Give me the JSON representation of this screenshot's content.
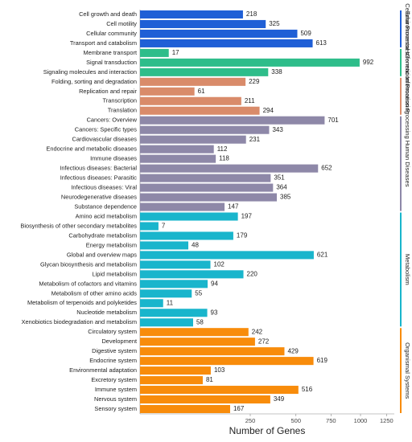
{
  "chart_data": {
    "type": "barh",
    "scale": "sqrt",
    "x_label": "Number of Genes",
    "xlim": [
      0,
      1330
    ],
    "xticks": [
      250,
      500,
      750,
      1000,
      1250
    ],
    "series": [
      {
        "name": "Cellular Processes",
        "color": "#1f5fd6",
        "categories": [
          "Cell growth and death",
          "Cell motility",
          "Cellular community",
          "Transport and catabolism"
        ],
        "values": [
          218,
          325,
          509,
          613
        ]
      },
      {
        "name": "Environmental Information Processing",
        "color": "#2ebd8a",
        "categories": [
          "Membrane transport",
          "Signal transduction",
          "Signaling molecules and interaction"
        ],
        "values": [
          17,
          992,
          338
        ]
      },
      {
        "name": "Genetic Information Processing",
        "color": "#d98b6a",
        "categories": [
          "Folding, sorting and degradation",
          "Replication and repair",
          "Transcription",
          "Translation"
        ],
        "values": [
          229,
          61,
          211,
          294
        ]
      },
      {
        "name": "Human Diseases",
        "color": "#8e88a8",
        "categories": [
          "Cancers: Overview",
          "Cancers: Specific types",
          "Cardiovascular diseases",
          "Endocrine and metabolic diseases",
          "Immune diseases",
          "Infectious diseases: Bacterial",
          "Infectious diseases: Parasitic",
          "Infectious diseases: Viral",
          "Neurodegenerative diseases",
          "Substance dependence"
        ],
        "values": [
          701,
          343,
          231,
          112,
          118,
          652,
          351,
          364,
          385,
          147
        ]
      },
      {
        "name": "Metabolism",
        "color": "#19b5cc",
        "categories": [
          "Amino acid metabolism",
          "Biosynthesis of other secondary metabolites",
          "Carbohydrate metabolism",
          "Energy metabolism",
          "Global and overview maps",
          "Glycan biosynthesis and metabolism",
          "Lipid metabolism",
          "Metabolism of cofactors and vitamins",
          "Metabolism of other amino acids",
          "Metabolism of terpenoids and polyketides",
          "Nucleotide metabolism",
          "Xenobiotics biodegradation and metabolism"
        ],
        "values": [
          197,
          7,
          179,
          48,
          621,
          102,
          220,
          94,
          55,
          11,
          93,
          58
        ]
      },
      {
        "name": "Organismal Systems",
        "color": "#f88c0b",
        "categories": [
          "Circulatory system",
          "Development",
          "Digestive system",
          "Endocrine system",
          "Environmental adaptation",
          "Excretory system",
          "Immune system",
          "Nervous system",
          "Sensory system"
        ],
        "values": [
          242,
          272,
          429,
          619,
          103,
          81,
          516,
          349,
          167
        ]
      }
    ]
  }
}
